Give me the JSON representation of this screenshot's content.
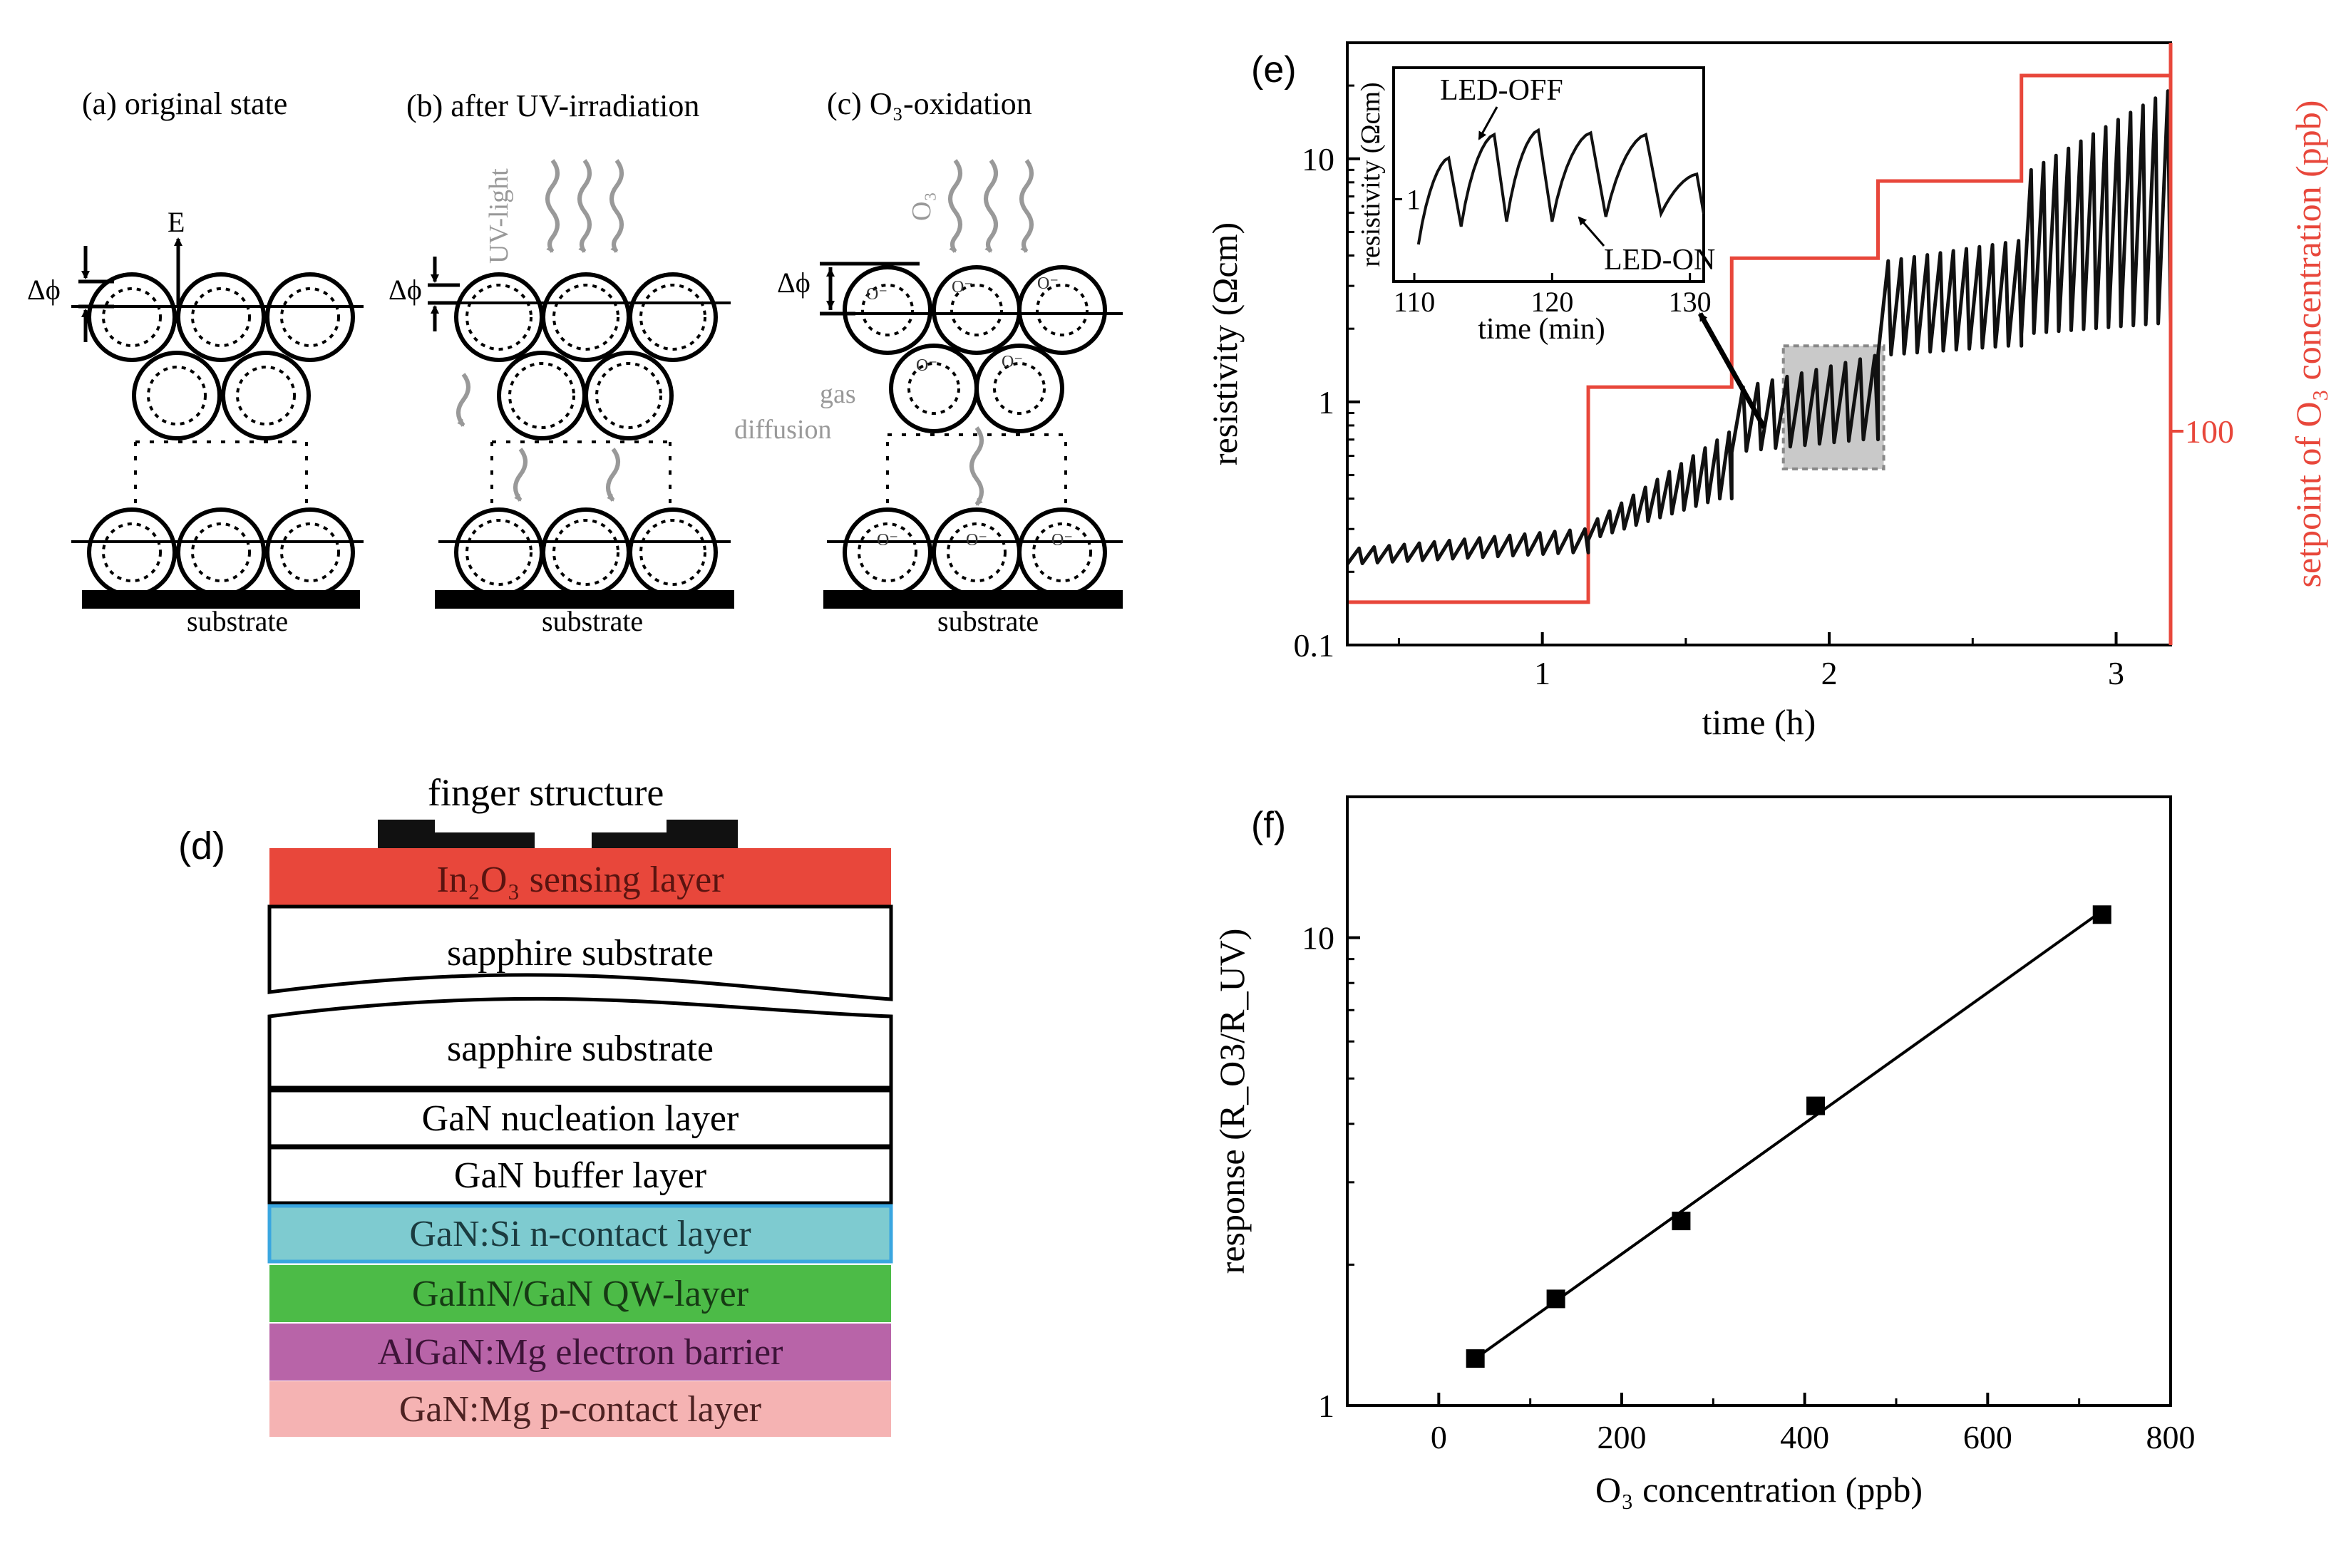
{
  "schematic": {
    "panel_a_label": "(a) original state",
    "panel_b_label": "(b) after UV-irradiation",
    "panel_c_label": "(c) O₃-oxidation",
    "field_label": "E",
    "delta_phi": "Δϕ",
    "uv_label": "UV-light",
    "o3_label": "O₃",
    "gas_label": "gas",
    "diffusion_label": "diffusion",
    "substrate_label": "substrate",
    "ion_label": "O⁻"
  },
  "stack": {
    "panel_label": "(d)",
    "finger_label": "finger structure",
    "layers": [
      {
        "text": "In₂O₃ sensing layer",
        "fill": "#e8473b",
        "text_color": "#5a1410"
      },
      {
        "text": "sapphire substrate",
        "fill": "#ffffff",
        "text_color": "#000000"
      },
      {
        "text": "sapphire substrate",
        "fill": "#ffffff",
        "text_color": "#000000"
      },
      {
        "text": "GaN nucleation layer",
        "fill": "#ffffff",
        "text_color": "#000000"
      },
      {
        "text": "GaN buffer layer",
        "fill": "#ffffff",
        "text_color": "#000000"
      },
      {
        "text": "GaN:Si n-contact layer",
        "fill": "#7ecbd0",
        "text_color": "#1b3b3f"
      },
      {
        "text": "GaInN/GaN QW-layer",
        "fill": "#4cbb47",
        "text_color": "#163a14"
      },
      {
        "text": "AlGaN:Mg electron barrier",
        "fill": "#b864a8",
        "text_color": "#3d1438"
      },
      {
        "text": "GaN:Mg p-contact layer",
        "fill": "#f5b3b3",
        "text_color": "#4d2222"
      }
    ]
  },
  "chart_data": [
    {
      "panel_label": "(e)",
      "type": "line",
      "xlabel": "time (h)",
      "ylabel": "resistivity (Ωcm)",
      "y2label": "setpoint of O₃ concentration (ppb)",
      "xlim": [
        0.32,
        3.19
      ],
      "ylim": [
        0.1,
        30
      ],
      "yscale": "log",
      "x_ticks": [
        "1",
        "2",
        "3"
      ],
      "y_ticks": [
        "0.1",
        "1",
        "10"
      ],
      "y2_ticks": [
        "100"
      ],
      "series": [
        {
          "name": "resistivity",
          "color": "#111111",
          "segments": [
            {
              "x_start": 0.32,
              "x_end": 1.16,
              "low_start": 0.215,
              "low_end": 0.24,
              "high_start": 0.25,
              "high_end": 0.3,
              "peaks": 16
            },
            {
              "x_start": 1.16,
              "x_end": 1.66,
              "low_start": 0.27,
              "low_end": 0.4,
              "high_start": 0.33,
              "high_end": 0.75,
              "peaks": 12
            },
            {
              "x_start": 1.66,
              "x_end": 2.17,
              "low_start": 0.62,
              "low_end": 0.7,
              "high_start": 1.15,
              "high_end": 1.55,
              "peaks": 10
            },
            {
              "x_start": 2.17,
              "x_end": 2.67,
              "low_start": 1.55,
              "low_end": 1.7,
              "high_start": 3.8,
              "high_end": 4.6,
              "peaks": 11
            },
            {
              "x_start": 2.67,
              "x_end": 3.19,
              "low_start": 1.9,
              "low_end": 2.1,
              "high_start": 9.0,
              "high_end": 19.0,
              "peaks": 12
            }
          ]
        },
        {
          "name": "setpoint of O₃",
          "color": "#e8473b",
          "steps": [
            {
              "x_start": 0.32,
              "x_end": 1.16,
              "level": 0.15
            },
            {
              "x_start": 1.16,
              "x_end": 1.66,
              "level": 1.15
            },
            {
              "x_start": 1.66,
              "x_end": 2.17,
              "level": 3.9
            },
            {
              "x_start": 2.17,
              "x_end": 2.67,
              "level": 8.1
            },
            {
              "x_start": 2.67,
              "x_end": 3.19,
              "level": 22.0
            }
          ]
        }
      ],
      "highlight_range": {
        "x": [
          1.84,
          2.19
        ],
        "y": [
          0.53,
          1.7
        ]
      },
      "inset": {
        "type": "line",
        "xlabel": "time (min)",
        "ylabel": "resistivity (Ωcm)",
        "xlim": [
          108.5,
          131
        ],
        "ylim": [
          0.55,
          2.6
        ],
        "x_ticks": [
          "110",
          "120",
          "130"
        ],
        "y_ticks": [
          "1"
        ],
        "cycles": [
          {
            "x_start": 110.3,
            "x_peak": 112.5,
            "x_end": 113.4,
            "low": 0.72,
            "high": 1.35
          },
          {
            "x_start": 113.4,
            "x_peak": 115.8,
            "x_end": 116.7,
            "low": 0.82,
            "high": 1.6
          },
          {
            "x_start": 116.7,
            "x_peak": 119.0,
            "x_end": 120.0,
            "low": 0.85,
            "high": 1.65
          },
          {
            "x_start": 120.0,
            "x_peak": 122.8,
            "x_end": 123.9,
            "low": 0.85,
            "high": 1.62
          },
          {
            "x_start": 123.9,
            "x_peak": 126.8,
            "x_end": 127.9,
            "low": 0.88,
            "high": 1.6
          },
          {
            "x_start": 127.9,
            "x_peak": 130.5,
            "x_end": 131.0,
            "low": 0.9,
            "high": 1.2
          }
        ],
        "annotations": [
          "LED-OFF",
          "LED-ON"
        ]
      }
    },
    {
      "panel_label": "(f)",
      "type": "scatter",
      "xlabel": "O₃ concentration (ppb)",
      "ylabel": "response (R_O3/R_UV)",
      "xlim": [
        -100,
        800
      ],
      "ylim": [
        1,
        20
      ],
      "yscale": "log",
      "x_ticks": [
        "0",
        "200",
        "400",
        "600",
        "800"
      ],
      "y_ticks": [
        "1",
        "10"
      ],
      "points": [
        {
          "x": 40,
          "y": 1.26
        },
        {
          "x": 128,
          "y": 1.69
        },
        {
          "x": 265,
          "y": 2.48
        },
        {
          "x": 412,
          "y": 4.37
        },
        {
          "x": 725,
          "y": 11.2
        }
      ],
      "fit_line": {
        "x": [
          40,
          725
        ],
        "y": [
          1.26,
          11.4
        ]
      }
    }
  ]
}
